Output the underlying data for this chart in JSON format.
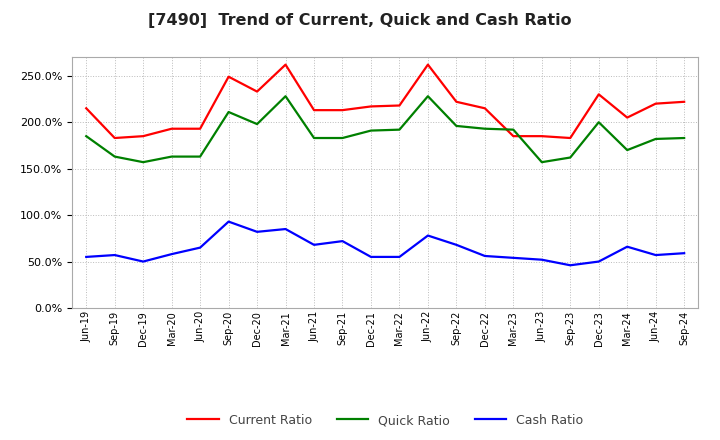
{
  "title": "[7490]  Trend of Current, Quick and Cash Ratio",
  "x_labels": [
    "Jun-19",
    "Sep-19",
    "Dec-19",
    "Mar-20",
    "Jun-20",
    "Sep-20",
    "Dec-20",
    "Mar-21",
    "Jun-21",
    "Sep-21",
    "Dec-21",
    "Mar-22",
    "Jun-22",
    "Sep-22",
    "Dec-22",
    "Mar-23",
    "Jun-23",
    "Sep-23",
    "Dec-23",
    "Mar-24",
    "Jun-24",
    "Sep-24"
  ],
  "current_ratio": [
    215,
    183,
    185,
    193,
    193,
    249,
    233,
    262,
    213,
    213,
    217,
    218,
    262,
    222,
    215,
    185,
    185,
    183,
    230,
    205,
    220,
    222
  ],
  "quick_ratio": [
    185,
    163,
    157,
    163,
    163,
    211,
    198,
    228,
    183,
    183,
    191,
    192,
    228,
    196,
    193,
    192,
    157,
    162,
    200,
    170,
    182,
    183
  ],
  "cash_ratio": [
    55,
    57,
    50,
    58,
    65,
    93,
    82,
    85,
    68,
    72,
    55,
    55,
    78,
    68,
    56,
    54,
    52,
    46,
    50,
    66,
    57,
    59
  ],
  "current_color": "#ff0000",
  "quick_color": "#008000",
  "cash_color": "#0000ff",
  "line_width": 1.6,
  "ylim": [
    0,
    270
  ],
  "yticks": [
    0,
    50,
    100,
    150,
    200,
    250
  ],
  "background_color": "#ffffff",
  "grid_color": "#bbbbbb",
  "title_fontsize": 11.5
}
